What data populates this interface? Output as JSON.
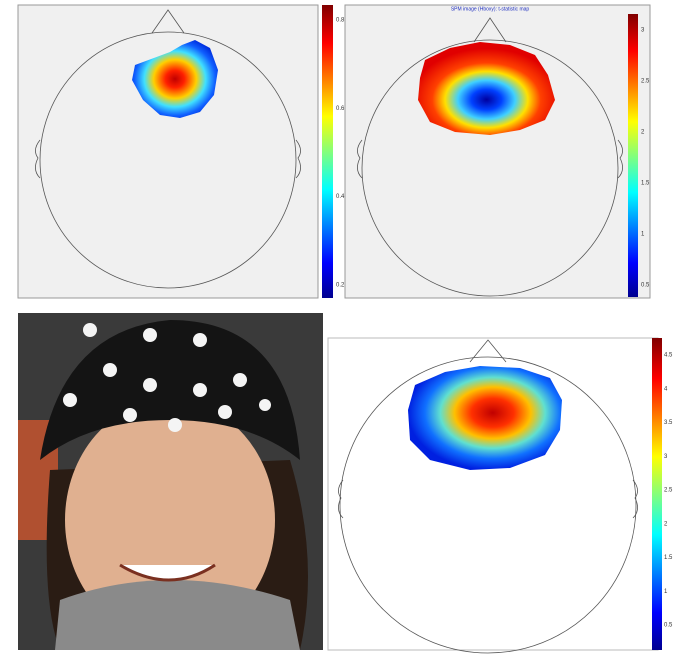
{
  "panels": [
    {
      "colorbar_ticks": [
        "0.8",
        "0.6",
        "0.4",
        "0.2"
      ]
    },
    {
      "title": "SPM image (Hboxy):    t-statistic map",
      "colorbar_ticks": [
        "3",
        "2.5",
        "2",
        "1.5",
        "1",
        "0.5"
      ]
    },
    {
      "colorbar_ticks": [
        "4.5",
        "4",
        "3.5",
        "3",
        "2.5",
        "2",
        "1.5",
        "1",
        "0.5"
      ]
    }
  ]
}
